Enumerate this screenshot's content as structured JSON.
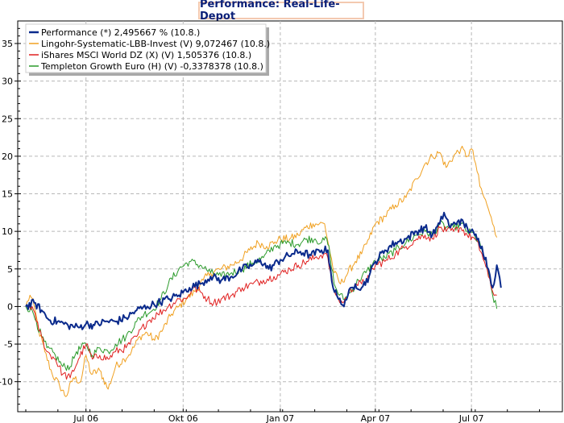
{
  "chart_data": {
    "type": "line",
    "title": "Performance: Real-Life-Depot",
    "ylim": [
      -14,
      38
    ],
    "y_ticks": [
      -10,
      -5,
      0,
      5,
      10,
      15,
      20,
      25,
      30,
      35
    ],
    "x_ticks": [
      {
        "label": "Jul 06",
        "day": 57
      },
      {
        "label": "Okt 06",
        "day": 149
      },
      {
        "label": "Jan 07",
        "day": 241
      },
      {
        "label": "Apr 07",
        "day": 331
      },
      {
        "label": "Jul 07",
        "day": 422
      }
    ],
    "x_range": [
      0,
      502
    ],
    "grid": true,
    "legend_position": "top-left",
    "series": [
      {
        "name": "Performance (*) 2,495667 % (10.8.)",
        "color": "#0a2a8c",
        "width": 2,
        "points": [
          [
            0,
            0
          ],
          [
            8,
            0.5
          ],
          [
            15,
            -0.5
          ],
          [
            22,
            -1.8
          ],
          [
            30,
            -2
          ],
          [
            40,
            -2.5
          ],
          [
            50,
            -2.8
          ],
          [
            57,
            -2.3
          ],
          [
            65,
            -2.5
          ],
          [
            75,
            -2
          ],
          [
            85,
            -2
          ],
          [
            95,
            -1.5
          ],
          [
            105,
            -0.5
          ],
          [
            115,
            0
          ],
          [
            125,
            0.5
          ],
          [
            135,
            1
          ],
          [
            145,
            1.5
          ],
          [
            155,
            2.5
          ],
          [
            165,
            3
          ],
          [
            175,
            4
          ],
          [
            185,
            3.5
          ],
          [
            195,
            4
          ],
          [
            205,
            5
          ],
          [
            215,
            5.5
          ],
          [
            222,
            6.2
          ],
          [
            230,
            5
          ],
          [
            241,
            6.2
          ],
          [
            252,
            7
          ],
          [
            260,
            7.3
          ],
          [
            270,
            6.8
          ],
          [
            280,
            7.5
          ],
          [
            286,
            7.5
          ],
          [
            291,
            2.5
          ],
          [
            296,
            1
          ],
          [
            300,
            0.2
          ],
          [
            305,
            1.5
          ],
          [
            312,
            3
          ],
          [
            318,
            2.5
          ],
          [
            325,
            4
          ],
          [
            331,
            6
          ],
          [
            340,
            7.5
          ],
          [
            350,
            8.5
          ],
          [
            360,
            9
          ],
          [
            370,
            10
          ],
          [
            378,
            10.5
          ],
          [
            385,
            9.5
          ],
          [
            392,
            11
          ],
          [
            396,
            12.5
          ],
          [
            402,
            10.5
          ],
          [
            410,
            11.5
          ],
          [
            418,
            10.5
          ],
          [
            425,
            9.5
          ],
          [
            432,
            8
          ],
          [
            438,
            5
          ],
          [
            442,
            2.5
          ],
          [
            446,
            5.5
          ],
          [
            450,
            2.5
          ]
        ]
      },
      {
        "name": "Lingohr-Systematic-LBB-Invest (V) 9,072467 (10.8.)",
        "color": "#f0a020",
        "width": 1,
        "points": [
          [
            0,
            0
          ],
          [
            4,
            1.5
          ],
          [
            8,
            0
          ],
          [
            12,
            -3
          ],
          [
            18,
            -6
          ],
          [
            25,
            -9
          ],
          [
            32,
            -10.5
          ],
          [
            38,
            -12
          ],
          [
            45,
            -9.5
          ],
          [
            52,
            -10
          ],
          [
            57,
            -6.5
          ],
          [
            62,
            -9
          ],
          [
            70,
            -8.5
          ],
          [
            78,
            -11
          ],
          [
            85,
            -8
          ],
          [
            93,
            -7
          ],
          [
            100,
            -6
          ],
          [
            108,
            -4
          ],
          [
            115,
            -3.5
          ],
          [
            122,
            -4.5
          ],
          [
            130,
            -3
          ],
          [
            138,
            -1
          ],
          [
            145,
            0
          ],
          [
            152,
            1
          ],
          [
            160,
            2
          ],
          [
            168,
            3.5
          ],
          [
            175,
            4.5
          ],
          [
            185,
            5
          ],
          [
            195,
            5.5
          ],
          [
            203,
            6.2
          ],
          [
            212,
            7.5
          ],
          [
            220,
            8.5
          ],
          [
            228,
            8
          ],
          [
            236,
            8.6
          ],
          [
            241,
            9
          ],
          [
            250,
            9
          ],
          [
            258,
            9.5
          ],
          [
            265,
            10.5
          ],
          [
            272,
            11
          ],
          [
            278,
            11
          ],
          [
            283,
            11
          ],
          [
            287,
            8
          ],
          [
            292,
            4.5
          ],
          [
            298,
            3
          ],
          [
            305,
            4.5
          ],
          [
            312,
            6
          ],
          [
            318,
            7
          ],
          [
            325,
            9
          ],
          [
            331,
            11
          ],
          [
            340,
            12
          ],
          [
            350,
            13.5
          ],
          [
            360,
            14.5
          ],
          [
            370,
            17
          ],
          [
            378,
            19
          ],
          [
            385,
            20
          ],
          [
            392,
            20.5
          ],
          [
            398,
            18.5
          ],
          [
            405,
            20
          ],
          [
            412,
            21
          ],
          [
            418,
            20
          ],
          [
            422,
            21
          ],
          [
            426,
            19
          ],
          [
            430,
            16
          ],
          [
            434,
            14.5
          ],
          [
            438,
            13
          ],
          [
            442,
            11
          ],
          [
            446,
            9.2
          ]
        ]
      },
      {
        "name": "iShares MSCI World DZ (X) (V) 1,505376 (10.8.)",
        "color": "#e02020",
        "width": 1,
        "points": [
          [
            0,
            0
          ],
          [
            6,
            0
          ],
          [
            10,
            -2
          ],
          [
            15,
            -4
          ],
          [
            20,
            -6
          ],
          [
            28,
            -7
          ],
          [
            35,
            -9
          ],
          [
            42,
            -9.5
          ],
          [
            50,
            -7
          ],
          [
            57,
            -5
          ],
          [
            63,
            -7
          ],
          [
            70,
            -6.5
          ],
          [
            78,
            -7
          ],
          [
            85,
            -6
          ],
          [
            95,
            -5.5
          ],
          [
            105,
            -4
          ],
          [
            115,
            -2
          ],
          [
            125,
            -1
          ],
          [
            135,
            0
          ],
          [
            145,
            1
          ],
          [
            152,
            1
          ],
          [
            158,
            2.5
          ],
          [
            165,
            2
          ],
          [
            172,
            1
          ],
          [
            178,
            0.5
          ],
          [
            185,
            1
          ],
          [
            195,
            1.5
          ],
          [
            205,
            2.5
          ],
          [
            215,
            3
          ],
          [
            225,
            3.5
          ],
          [
            235,
            4
          ],
          [
            241,
            4.3
          ],
          [
            250,
            5
          ],
          [
            258,
            5.5
          ],
          [
            266,
            6
          ],
          [
            274,
            6.5
          ],
          [
            282,
            7
          ],
          [
            286,
            6.5
          ],
          [
            291,
            2.5
          ],
          [
            296,
            1
          ],
          [
            300,
            0.5
          ],
          [
            305,
            1.5
          ],
          [
            312,
            3
          ],
          [
            318,
            3
          ],
          [
            325,
            4
          ],
          [
            331,
            5.5
          ],
          [
            340,
            6
          ],
          [
            350,
            7
          ],
          [
            360,
            8
          ],
          [
            370,
            9
          ],
          [
            378,
            9.5
          ],
          [
            385,
            9
          ],
          [
            392,
            10.5
          ],
          [
            398,
            10
          ],
          [
            405,
            10
          ],
          [
            412,
            10.5
          ],
          [
            418,
            9.5
          ],
          [
            425,
            9
          ],
          [
            432,
            7
          ],
          [
            438,
            4
          ],
          [
            442,
            2
          ],
          [
            446,
            1.5
          ]
        ]
      },
      {
        "name": "Templeton Growth Euro (H) (V) -0,3378378 (10.8.)",
        "color": "#2a9a2a",
        "width": 1,
        "points": [
          [
            0,
            0
          ],
          [
            6,
            -0.5
          ],
          [
            10,
            -2
          ],
          [
            15,
            -4
          ],
          [
            20,
            -5.5
          ],
          [
            28,
            -6.5
          ],
          [
            35,
            -8
          ],
          [
            42,
            -8
          ],
          [
            48,
            -6
          ],
          [
            57,
            -5
          ],
          [
            63,
            -6.5
          ],
          [
            70,
            -5.5
          ],
          [
            78,
            -6
          ],
          [
            85,
            -5
          ],
          [
            95,
            -4
          ],
          [
            105,
            -2
          ],
          [
            112,
            -1
          ],
          [
            120,
            -0.5
          ],
          [
            128,
            1
          ],
          [
            135,
            3
          ],
          [
            145,
            5
          ],
          [
            155,
            6
          ],
          [
            165,
            5.5
          ],
          [
            175,
            4.5
          ],
          [
            185,
            4
          ],
          [
            195,
            4.5
          ],
          [
            205,
            5
          ],
          [
            215,
            5.8
          ],
          [
            225,
            6.5
          ],
          [
            235,
            8
          ],
          [
            241,
            8.3
          ],
          [
            250,
            8.5
          ],
          [
            258,
            8.3
          ],
          [
            266,
            9
          ],
          [
            274,
            9
          ],
          [
            280,
            8.5
          ],
          [
            285,
            9
          ],
          [
            288,
            7
          ],
          [
            292,
            3
          ],
          [
            297,
            1.5
          ],
          [
            302,
            1
          ],
          [
            308,
            2
          ],
          [
            315,
            3.5
          ],
          [
            322,
            4.5
          ],
          [
            331,
            6
          ],
          [
            340,
            6.5
          ],
          [
            350,
            7.5
          ],
          [
            360,
            8.5
          ],
          [
            370,
            9.5
          ],
          [
            378,
            10
          ],
          [
            385,
            9.5
          ],
          [
            392,
            11
          ],
          [
            398,
            10.5
          ],
          [
            405,
            10.5
          ],
          [
            412,
            11
          ],
          [
            418,
            10
          ],
          [
            425,
            9.5
          ],
          [
            432,
            7.5
          ],
          [
            438,
            4.5
          ],
          [
            442,
            1.5
          ],
          [
            446,
            -0.3
          ]
        ]
      }
    ]
  }
}
